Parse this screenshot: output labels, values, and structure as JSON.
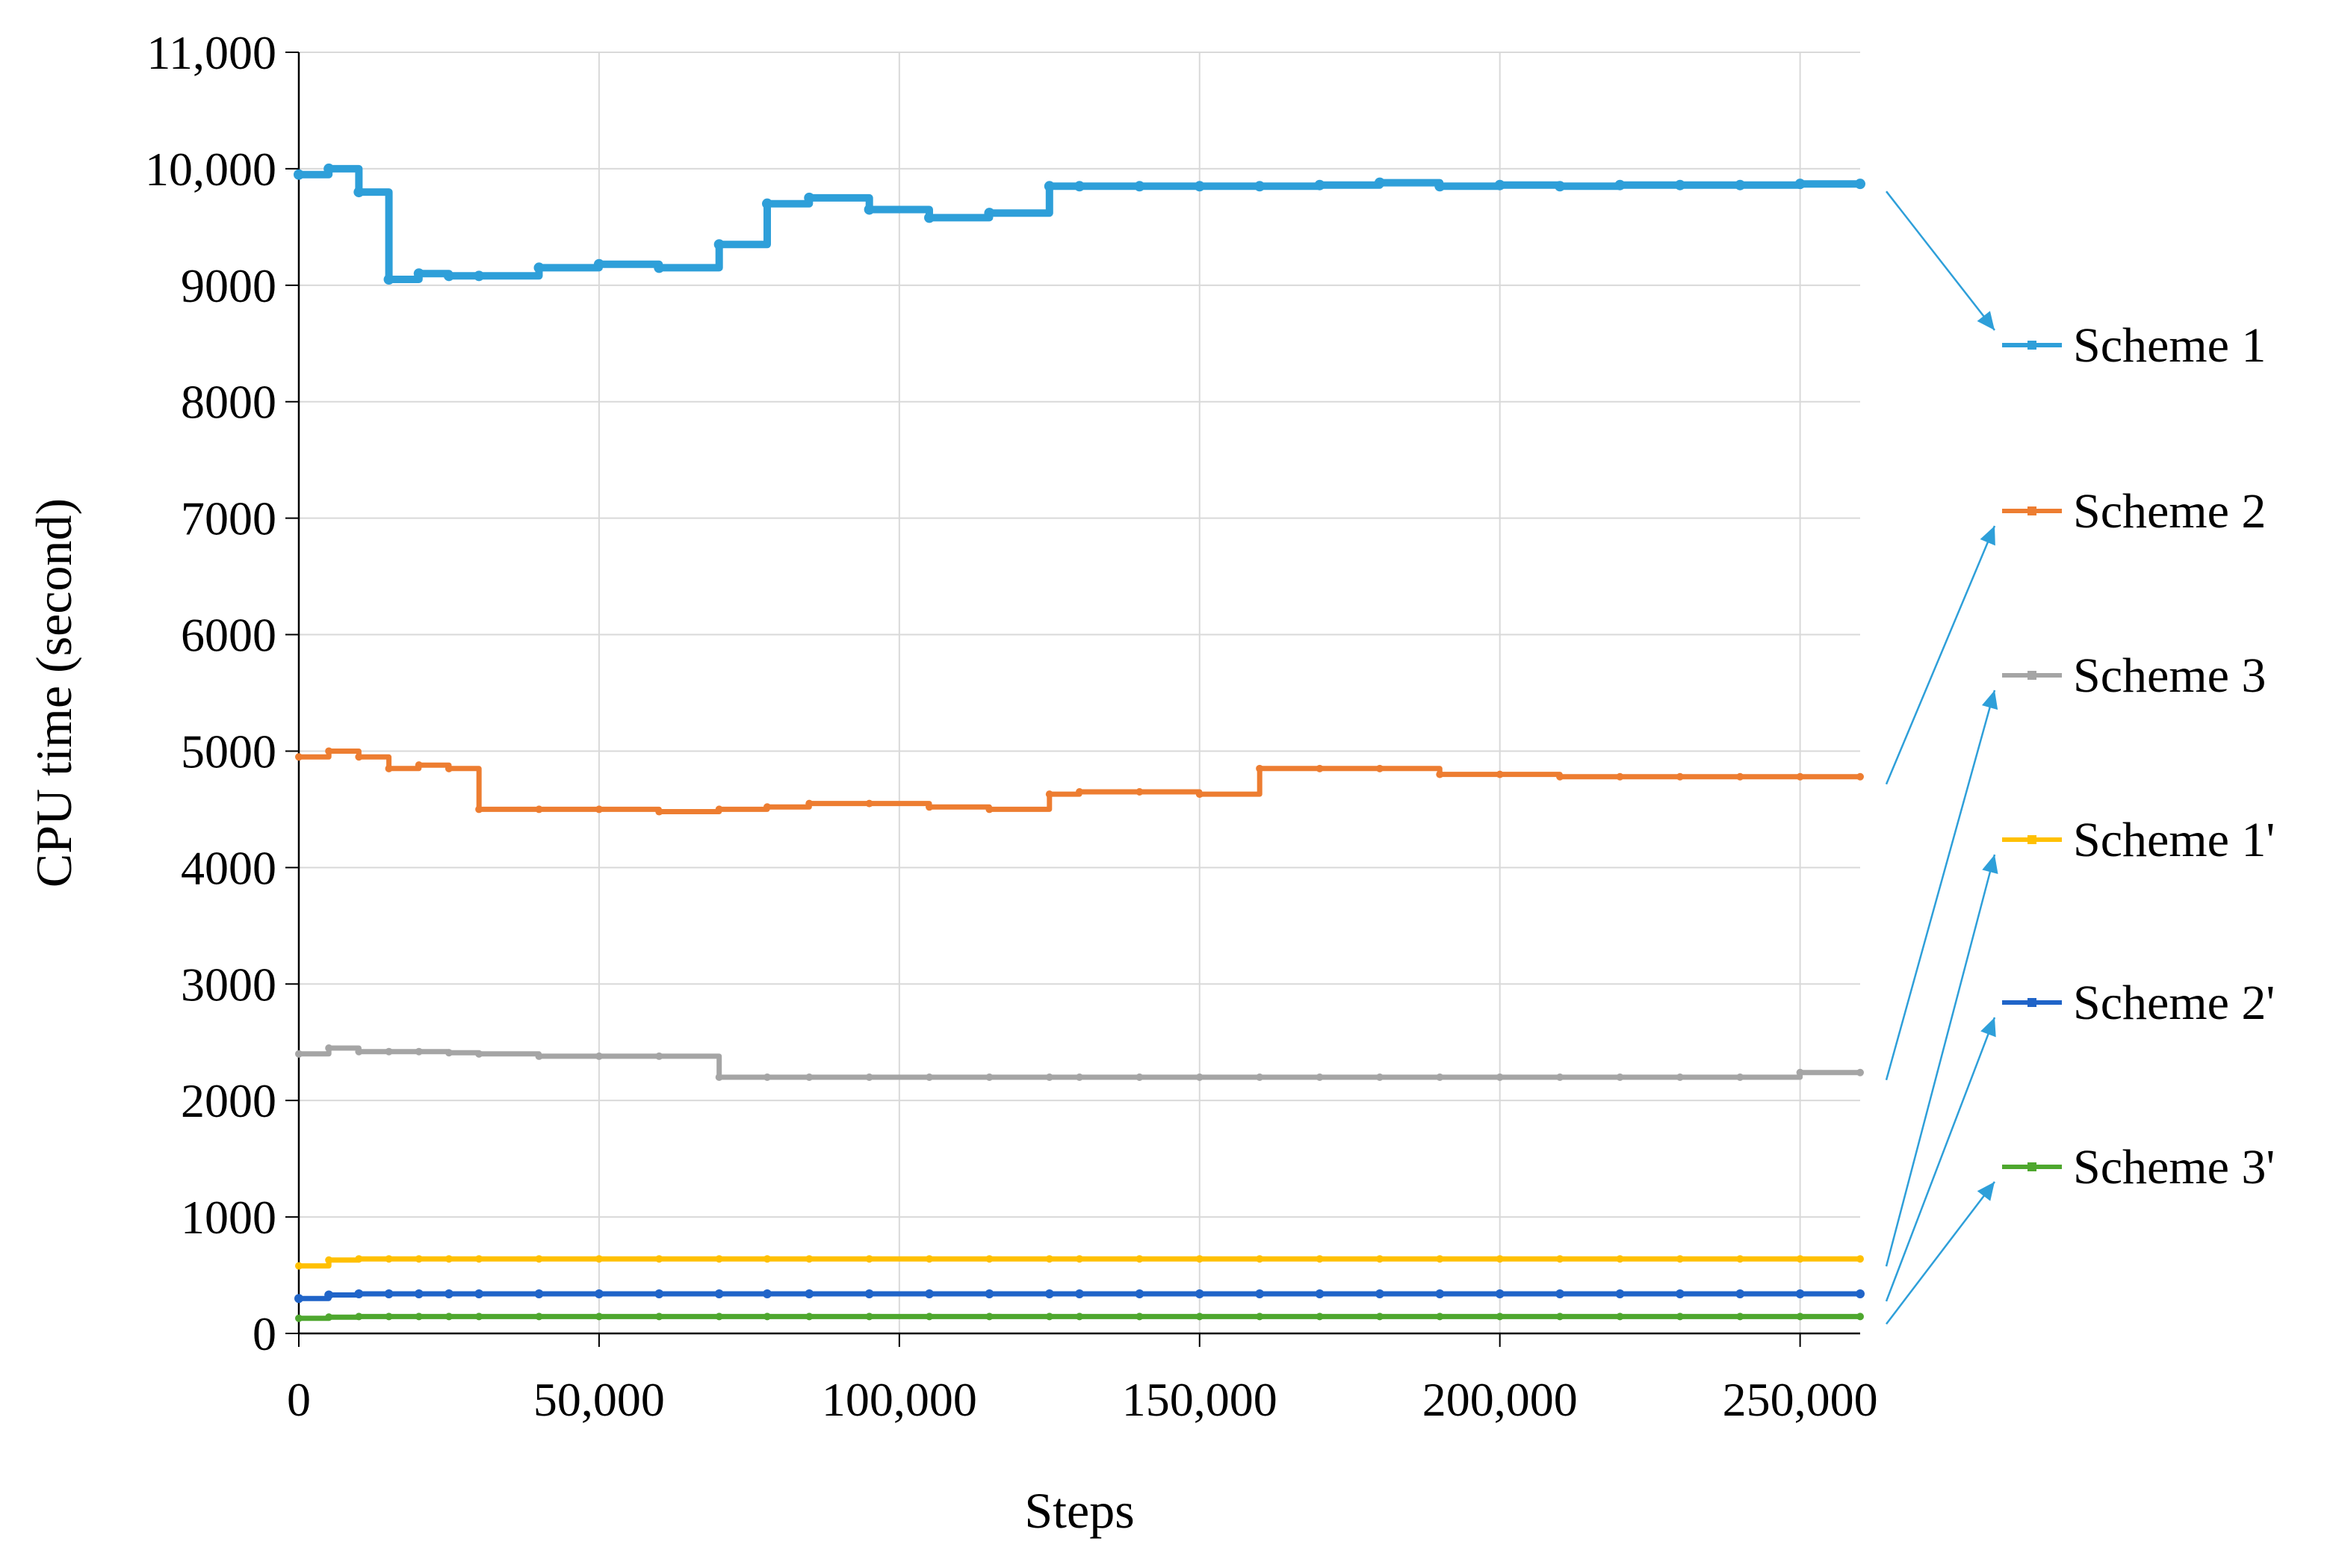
{
  "chart_data": {
    "type": "line",
    "title": "",
    "xlabel": "Steps",
    "ylabel": "CPU time (second)",
    "xlim": [
      0,
      260000
    ],
    "ylim": [
      0,
      11000
    ],
    "grid": true,
    "legend_position": "right",
    "x_ticks": [
      0,
      50000,
      100000,
      150000,
      200000,
      250000
    ],
    "x_tick_labels": [
      "0",
      "50,000",
      "100,000",
      "150,000",
      "200,000",
      "250,000"
    ],
    "y_ticks": [
      0,
      1000,
      2000,
      3000,
      4000,
      5000,
      6000,
      7000,
      8000,
      9000,
      10000,
      11000
    ],
    "y_tick_labels": [
      "0",
      "1000",
      "2000",
      "3000",
      "4000",
      "5000",
      "6000",
      "7000",
      "8000",
      "9000",
      "10,000",
      "11,000"
    ],
    "x": [
      0,
      5000,
      10000,
      15000,
      20000,
      25000,
      30000,
      40000,
      50000,
      60000,
      70000,
      78000,
      85000,
      95000,
      105000,
      115000,
      125000,
      130000,
      140000,
      150000,
      160000,
      170000,
      180000,
      190000,
      200000,
      210000,
      220000,
      230000,
      240000,
      250000,
      260000
    ],
    "series": [
      {
        "name": "Scheme 1",
        "color": "#2E9FD9",
        "values": [
          9950,
          10000,
          9800,
          9050,
          9100,
          9080,
          9080,
          9150,
          9180,
          9150,
          9350,
          9700,
          9750,
          9650,
          9580,
          9620,
          9850,
          9850,
          9850,
          9850,
          9850,
          9860,
          9880,
          9850,
          9860,
          9850,
          9860,
          9860,
          9860,
          9870,
          9870
        ]
      },
      {
        "name": "Scheme 2",
        "color": "#ED7D31",
        "values": [
          4950,
          5000,
          4950,
          4850,
          4880,
          4850,
          4500,
          4500,
          4500,
          4480,
          4500,
          4520,
          4550,
          4550,
          4520,
          4500,
          4630,
          4650,
          4650,
          4630,
          4850,
          4850,
          4850,
          4800,
          4800,
          4780,
          4780,
          4780,
          4780,
          4780,
          4780
        ]
      },
      {
        "name": "Scheme 3",
        "color": "#A5A5A5",
        "values": [
          2400,
          2450,
          2420,
          2420,
          2420,
          2410,
          2400,
          2380,
          2380,
          2380,
          2200,
          2200,
          2200,
          2200,
          2200,
          2200,
          2200,
          2200,
          2200,
          2200,
          2200,
          2200,
          2200,
          2200,
          2200,
          2200,
          2200,
          2200,
          2200,
          2240,
          2240
        ]
      },
      {
        "name": "Scheme 1'",
        "color": "#FFC000",
        "values": [
          580,
          630,
          640,
          640,
          640,
          640,
          640,
          640,
          640,
          640,
          640,
          640,
          640,
          640,
          640,
          640,
          640,
          640,
          640,
          640,
          640,
          640,
          640,
          640,
          640,
          640,
          640,
          640,
          640,
          640,
          640
        ]
      },
      {
        "name": "Scheme 2'",
        "color": "#2064C8",
        "values": [
          300,
          330,
          340,
          340,
          340,
          340,
          340,
          340,
          340,
          340,
          340,
          340,
          340,
          340,
          340,
          340,
          340,
          340,
          340,
          340,
          340,
          340,
          340,
          340,
          340,
          340,
          340,
          340,
          340,
          340,
          340
        ]
      },
      {
        "name": "Scheme 3'",
        "color": "#4EA72E",
        "values": [
          130,
          140,
          145,
          145,
          145,
          145,
          145,
          145,
          145,
          145,
          145,
          145,
          145,
          145,
          145,
          145,
          145,
          145,
          145,
          145,
          145,
          145,
          145,
          145,
          145,
          145,
          145,
          145,
          145,
          145,
          145
        ]
      }
    ]
  }
}
